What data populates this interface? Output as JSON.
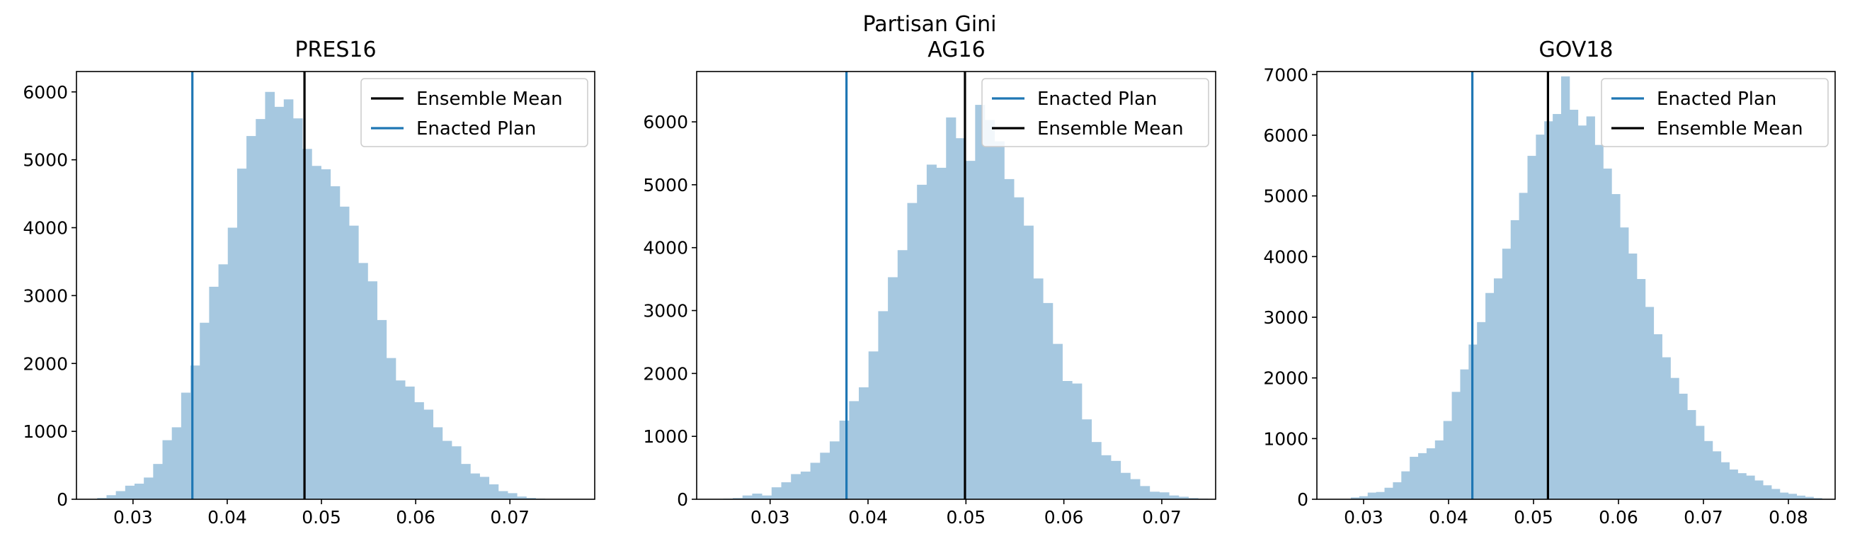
{
  "figure_title": "Partisan Gini",
  "colors": {
    "hist": "#a6c8e0",
    "enacted": "#1f77b4",
    "mean": "#000000"
  },
  "chart_data": [
    {
      "type": "bar",
      "subtype": "histogram",
      "title": "PRES16",
      "xlim": [
        0.024,
        0.079
      ],
      "ylim": [
        0,
        6300
      ],
      "xticks": [
        0.03,
        0.04,
        0.05,
        0.06,
        0.07
      ],
      "xtick_labels": [
        "0.03",
        "0.04",
        "0.05",
        "0.06",
        "0.07"
      ],
      "yticks": [
        0,
        1000,
        2000,
        3000,
        4000,
        5000,
        6000
      ],
      "ytick_labels": [
        "0",
        "1000",
        "2000",
        "3000",
        "4000",
        "5000",
        "6000"
      ],
      "bins_start": 0.0262,
      "bin_width": 0.00099,
      "values": [
        20,
        60,
        120,
        200,
        230,
        320,
        520,
        870,
        1060,
        1570,
        1970,
        2600,
        3130,
        3460,
        4000,
        4870,
        5350,
        5600,
        6000,
        5780,
        5890,
        5610,
        5160,
        4910,
        4860,
        4610,
        4310,
        4030,
        3480,
        3210,
        2640,
        2080,
        1750,
        1660,
        1430,
        1320,
        1060,
        860,
        780,
        520,
        380,
        330,
        220,
        120,
        90,
        40,
        20,
        10
      ],
      "lines": [
        {
          "name": "Ensemble Mean",
          "x": 0.0482,
          "color": "#000000"
        },
        {
          "name": "Enacted Plan",
          "x": 0.0363,
          "color": "#1f77b4"
        }
      ],
      "legend_order": [
        "Ensemble Mean",
        "Enacted Plan"
      ],
      "legend_position": "top-right"
    },
    {
      "type": "bar",
      "subtype": "histogram",
      "title": "AG16",
      "xlim": [
        0.0225,
        0.0755
      ],
      "ylim": [
        0,
        6800
      ],
      "xticks": [
        0.03,
        0.04,
        0.05,
        0.06,
        0.07
      ],
      "xtick_labels": [
        "0.03",
        "0.04",
        "0.05",
        "0.06",
        "0.07"
      ],
      "yticks": [
        0,
        1000,
        2000,
        3000,
        4000,
        5000,
        6000
      ],
      "ytick_labels": [
        "0",
        "1000",
        "2000",
        "3000",
        "4000",
        "5000",
        "6000"
      ],
      "bins_start": 0.0252,
      "bin_width": 0.00099,
      "values": [
        10,
        20,
        60,
        90,
        60,
        190,
        270,
        400,
        440,
        580,
        740,
        920,
        1250,
        1560,
        1780,
        2350,
        2990,
        3530,
        3960,
        4710,
        5000,
        5320,
        5270,
        6070,
        5740,
        5380,
        6270,
        6030,
        5690,
        5090,
        4800,
        4350,
        3510,
        3120,
        2470,
        1880,
        1840,
        1270,
        910,
        700,
        610,
        420,
        320,
        210,
        120,
        110,
        60,
        40,
        20,
        10
      ],
      "lines": [
        {
          "name": "Enacted Plan",
          "x": 0.0378,
          "color": "#1f77b4"
        },
        {
          "name": "Ensemble Mean",
          "x": 0.0499,
          "color": "#000000"
        }
      ],
      "legend_order": [
        "Enacted Plan",
        "Ensemble Mean"
      ],
      "legend_position": "top-right"
    },
    {
      "type": "bar",
      "subtype": "histogram",
      "title": "GOV18",
      "xlim": [
        0.0245,
        0.0855
      ],
      "ylim": [
        0,
        7050
      ],
      "xticks": [
        0.03,
        0.04,
        0.05,
        0.06,
        0.07,
        0.08
      ],
      "xtick_labels": [
        "0.03",
        "0.04",
        "0.05",
        "0.06",
        "0.07",
        "0.08"
      ],
      "yticks": [
        0,
        1000,
        2000,
        3000,
        4000,
        5000,
        6000,
        7000
      ],
      "ytick_labels": [
        "0",
        "1000",
        "2000",
        "3000",
        "4000",
        "5000",
        "6000",
        "7000"
      ],
      "bins_start": 0.0285,
      "bin_width": 0.00099,
      "values": [
        30,
        50,
        110,
        120,
        190,
        280,
        460,
        700,
        760,
        840,
        970,
        1290,
        1770,
        2140,
        2550,
        2920,
        3400,
        3640,
        4130,
        4600,
        5050,
        5660,
        6010,
        6230,
        6350,
        6970,
        6420,
        6160,
        6310,
        5840,
        5450,
        5030,
        4480,
        4050,
        3630,
        3170,
        2720,
        2340,
        2000,
        1740,
        1470,
        1210,
        960,
        790,
        610,
        490,
        430,
        390,
        310,
        230,
        170,
        110,
        90,
        60,
        40,
        20
      ],
      "lines": [
        {
          "name": "Enacted Plan",
          "x": 0.0428,
          "color": "#1f77b4"
        },
        {
          "name": "Ensemble Mean",
          "x": 0.0517,
          "color": "#000000"
        }
      ],
      "legend_order": [
        "Enacted Plan",
        "Ensemble Mean"
      ],
      "legend_position": "top-right"
    }
  ]
}
